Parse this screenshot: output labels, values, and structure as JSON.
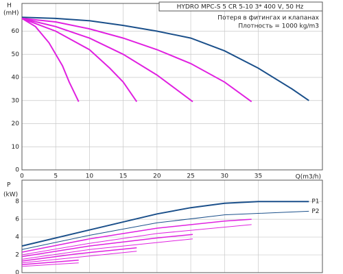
{
  "chart_data": [
    {
      "type": "line",
      "y_label": "H",
      "y_unit": "(mH)",
      "x_label": "Q(m3/h)",
      "title": "HYDRO MPC-S 5 CR 5-10   3* 400 V, 50 Hz",
      "annotations": [
        "Потеря в фитингах и клапанах",
        "Плотность = 1000 kg/m3"
      ],
      "xlim": [
        0,
        44.5
      ],
      "xticks": [
        0,
        5,
        10,
        15,
        20,
        25,
        30,
        35
      ],
      "ylim": [
        0,
        72
      ],
      "yticks": [
        0,
        10,
        20,
        30,
        40,
        50,
        60
      ],
      "grid": true,
      "series": [
        {
          "color": "#1a4f8a",
          "x": [
            0,
            5,
            10,
            15,
            20,
            25,
            30,
            35,
            40,
            42.5
          ],
          "values": [
            66,
            65.5,
            64.5,
            62.5,
            60,
            57,
            51.5,
            44,
            35,
            30
          ]
        },
        {
          "color": "#e020e0",
          "x": [
            0,
            5,
            10,
            15,
            20,
            25,
            30,
            34
          ],
          "values": [
            65.5,
            64,
            61,
            57,
            52,
            46,
            38,
            29.5
          ]
        },
        {
          "color": "#e020e0",
          "x": [
            0,
            5,
            10,
            15,
            20,
            25.3
          ],
          "values": [
            65.5,
            62,
            57,
            50,
            41,
            29.5
          ]
        },
        {
          "color": "#e020e0",
          "x": [
            0,
            5,
            10,
            13,
            15,
            17
          ],
          "values": [
            65.5,
            60,
            52,
            44,
            38,
            29.5
          ]
        },
        {
          "color": "#e020e0",
          "x": [
            0,
            2,
            4,
            6,
            7,
            8.4
          ],
          "values": [
            65.5,
            62,
            55,
            45,
            38,
            29.5
          ]
        }
      ]
    },
    {
      "type": "line",
      "y_label": "P",
      "y_unit": "(kW)",
      "xlim": [
        0,
        44.5
      ],
      "ylim": [
        0,
        10.4
      ],
      "yticks": [
        0,
        2,
        4,
        6,
        8
      ],
      "grid": true,
      "series": [
        {
          "label": "P1",
          "color": "#1a4f8a",
          "width": 2,
          "x": [
            0,
            10,
            20,
            25,
            30,
            35,
            42.5
          ],
          "values": [
            3,
            4.8,
            6.6,
            7.3,
            7.8,
            8,
            8
          ]
        },
        {
          "label": "P2",
          "color": "#1a4f8a",
          "width": 1,
          "x": [
            0,
            10,
            20,
            30,
            42.5
          ],
          "values": [
            2.6,
            4.2,
            5.6,
            6.5,
            6.9
          ]
        },
        {
          "color": "#e020e0",
          "width": 1.5,
          "x": [
            0,
            10,
            20,
            30,
            34
          ],
          "values": [
            2.3,
            3.8,
            5,
            5.8,
            6
          ]
        },
        {
          "color": "#e020e0",
          "width": 1,
          "x": [
            0,
            10,
            20,
            34
          ],
          "values": [
            2,
            3.3,
            4.4,
            5.4
          ]
        },
        {
          "color": "#e020e0",
          "width": 1.5,
          "x": [
            0,
            10,
            20,
            25.3
          ],
          "values": [
            1.8,
            3,
            3.9,
            4.3
          ]
        },
        {
          "color": "#e020e0",
          "width": 1,
          "x": [
            0,
            10,
            25.3
          ],
          "values": [
            1.5,
            2.6,
            3.8
          ]
        },
        {
          "color": "#e020e0",
          "width": 1.5,
          "x": [
            0,
            8,
            17
          ],
          "values": [
            1.3,
            2.1,
            2.8
          ]
        },
        {
          "color": "#e020e0",
          "width": 1,
          "x": [
            0,
            17
          ],
          "values": [
            1.1,
            2.4
          ]
        },
        {
          "color": "#e020e0",
          "width": 1.5,
          "x": [
            0,
            8.4
          ],
          "values": [
            0.9,
            1.4
          ]
        },
        {
          "color": "#e020e0",
          "width": 1,
          "x": [
            0,
            8.4
          ],
          "values": [
            0.7,
            1.1
          ]
        }
      ]
    }
  ]
}
